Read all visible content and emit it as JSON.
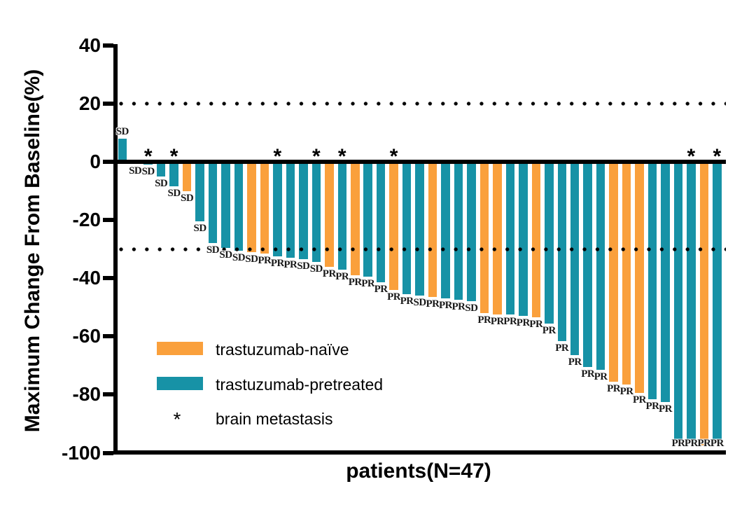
{
  "figure": {
    "y_axis_title": "Maximum Change From Baseline(%)",
    "x_axis_title": "patients(N=47)"
  },
  "legend": {
    "items": [
      {
        "swatch": "orange-rect",
        "label": "trastuzumab-naïve"
      },
      {
        "swatch": "teal-rect",
        "label": "trastuzumab-pretreated"
      },
      {
        "swatch": "asterisk",
        "symbol": "*",
        "label": "brain metastasis"
      }
    ]
  },
  "chart_data": {
    "type": "bar",
    "subtype": "waterfall",
    "title": "",
    "xlabel": "patients(N=47)",
    "ylabel": "Maximum Change From Baseline(%)",
    "ylim": [
      -100,
      40
    ],
    "yticks": [
      40,
      20,
      0,
      -20,
      -40,
      -60,
      -80,
      -100
    ],
    "reference_lines_y": [
      20,
      -30
    ],
    "grid": false,
    "n": 47,
    "colors": {
      "trastuzumab_naive": "#FAA03C",
      "trastuzumab_pretreated": "#1792A6"
    },
    "annotation_symbol": "*",
    "bars": [
      {
        "value": 8,
        "group": "pretreated",
        "response": "SD",
        "brain_met": false
      },
      {
        "value": -0.7,
        "group": "pretreated",
        "response": "SD",
        "brain_met": false
      },
      {
        "value": -1,
        "group": "pretreated",
        "response": "SD",
        "brain_met": true
      },
      {
        "value": -5,
        "group": "pretreated",
        "response": "SD",
        "brain_met": false
      },
      {
        "value": -8.5,
        "group": "pretreated",
        "response": "SD",
        "brain_met": true
      },
      {
        "value": -10,
        "group": "naive",
        "response": "SD",
        "brain_met": false
      },
      {
        "value": -20.5,
        "group": "pretreated",
        "response": "SD",
        "brain_met": false
      },
      {
        "value": -28,
        "group": "pretreated",
        "response": "SD",
        "brain_met": false
      },
      {
        "value": -29.5,
        "group": "pretreated",
        "response": "SD",
        "brain_met": false
      },
      {
        "value": -30.5,
        "group": "pretreated",
        "response": "SD",
        "brain_met": false
      },
      {
        "value": -31,
        "group": "naive",
        "response": "SD",
        "brain_met": false
      },
      {
        "value": -31.5,
        "group": "naive",
        "response": "PR",
        "brain_met": false
      },
      {
        "value": -32.5,
        "group": "pretreated",
        "response": "PR",
        "brain_met": true
      },
      {
        "value": -33,
        "group": "pretreated",
        "response": "PR",
        "brain_met": false
      },
      {
        "value": -33.5,
        "group": "pretreated",
        "response": "SD",
        "brain_met": false
      },
      {
        "value": -34.5,
        "group": "pretreated",
        "response": "SD",
        "brain_met": true
      },
      {
        "value": -36,
        "group": "naive",
        "response": "PR",
        "brain_met": false
      },
      {
        "value": -37,
        "group": "pretreated",
        "response": "PR",
        "brain_met": true
      },
      {
        "value": -39,
        "group": "naive",
        "response": "PR",
        "brain_met": false
      },
      {
        "value": -39.5,
        "group": "pretreated",
        "response": "PR",
        "brain_met": false
      },
      {
        "value": -41.5,
        "group": "pretreated",
        "response": "PR",
        "brain_met": false
      },
      {
        "value": -44,
        "group": "naive",
        "response": "PR",
        "brain_met": true
      },
      {
        "value": -45.5,
        "group": "pretreated",
        "response": "PR",
        "brain_met": false
      },
      {
        "value": -46,
        "group": "pretreated",
        "response": "SD",
        "brain_met": false
      },
      {
        "value": -46.5,
        "group": "naive",
        "response": "PR",
        "brain_met": false
      },
      {
        "value": -47,
        "group": "pretreated",
        "response": "PR",
        "brain_met": false
      },
      {
        "value": -47.5,
        "group": "pretreated",
        "response": "PR",
        "brain_met": false
      },
      {
        "value": -48,
        "group": "pretreated",
        "response": "SD",
        "brain_met": false
      },
      {
        "value": -52,
        "group": "naive",
        "response": "PR",
        "brain_met": false
      },
      {
        "value": -52.5,
        "group": "naive",
        "response": "PR",
        "brain_met": false
      },
      {
        "value": -52.5,
        "group": "pretreated",
        "response": "PR",
        "brain_met": false
      },
      {
        "value": -53,
        "group": "pretreated",
        "response": "PR",
        "brain_met": false
      },
      {
        "value": -53.5,
        "group": "naive",
        "response": "PR",
        "brain_met": false
      },
      {
        "value": -55.5,
        "group": "pretreated",
        "response": "PR",
        "brain_met": false
      },
      {
        "value": -61.5,
        "group": "pretreated",
        "response": "PR",
        "brain_met": false
      },
      {
        "value": -66.5,
        "group": "pretreated",
        "response": "PR",
        "brain_met": false
      },
      {
        "value": -70.5,
        "group": "pretreated",
        "response": "PR",
        "brain_met": false
      },
      {
        "value": -71.5,
        "group": "pretreated",
        "response": "PR",
        "brain_met": false
      },
      {
        "value": -75.5,
        "group": "naive",
        "response": "PR",
        "brain_met": false
      },
      {
        "value": -76.5,
        "group": "naive",
        "response": "PR",
        "brain_met": false
      },
      {
        "value": -79.5,
        "group": "naive",
        "response": "PR",
        "brain_met": false
      },
      {
        "value": -81.5,
        "group": "pretreated",
        "response": "PR",
        "brain_met": false
      },
      {
        "value": -82.5,
        "group": "pretreated",
        "response": "PR",
        "brain_met": false
      },
      {
        "value": -96,
        "group": "pretreated",
        "response": "PR",
        "brain_met": false
      },
      {
        "value": -96.5,
        "group": "pretreated",
        "response": "PR",
        "brain_met": true
      },
      {
        "value": -97.5,
        "group": "naive",
        "response": "PR",
        "brain_met": false
      },
      {
        "value": -96.5,
        "group": "pretreated",
        "response": "PR",
        "brain_met": true
      }
    ]
  }
}
